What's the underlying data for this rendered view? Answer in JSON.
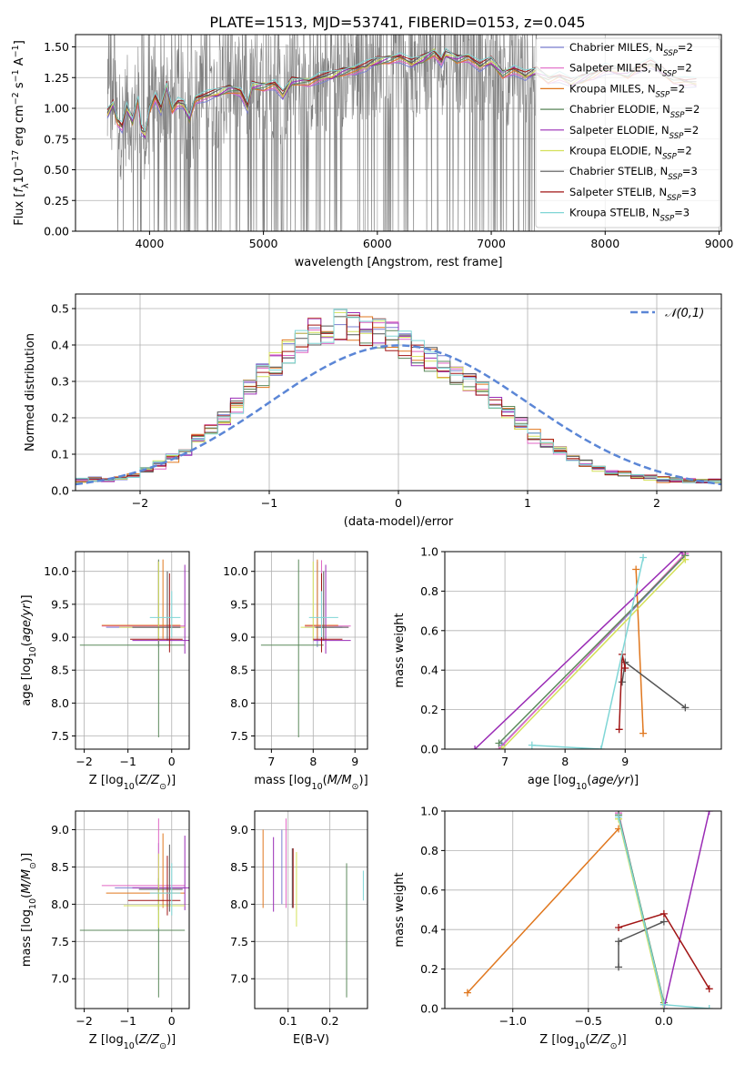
{
  "figure": {
    "title": "PLATE=1513, MJD=53741, FIBERID=0153, z=0.045"
  },
  "models": [
    {
      "name": "Chabrier MILES",
      "nssp": "2",
      "color": "#7b7fd1"
    },
    {
      "name": "Salpeter MILES",
      "nssp": "2",
      "color": "#e066c4"
    },
    {
      "name": "Kroupa MILES",
      "nssp": "2",
      "color": "#e0771e"
    },
    {
      "name": "Chabrier ELODIE",
      "nssp": "2",
      "color": "#5c8a5c"
    },
    {
      "name": "Salpeter ELODIE",
      "nssp": "2",
      "color": "#9a2bb5"
    },
    {
      "name": "Kroupa ELODIE",
      "nssp": "2",
      "color": "#d4e05a"
    },
    {
      "name": "Chabrier STELIB",
      "nssp": "3",
      "color": "#555555"
    },
    {
      "name": "Salpeter STELIB",
      "nssp": "3",
      "color": "#a11515"
    },
    {
      "name": "Kroupa STELIB",
      "nssp": "3",
      "color": "#7fd6d6"
    }
  ],
  "chart_data": [
    {
      "id": "spectrum",
      "type": "line",
      "xlabel": "wavelength [Angstrom, rest frame]",
      "ylabel": "Flux [f_λ 10^-17 erg cm^-2 s^-1 A^-1]",
      "xlim": [
        3350,
        9020
      ],
      "ylim": [
        0,
        1.6
      ],
      "xticks": [
        4000,
        5000,
        6000,
        7000,
        8000,
        9000
      ],
      "yticks": [
        0.0,
        0.25,
        0.5,
        0.75,
        1.0,
        1.25,
        1.5
      ],
      "data_color": "#808080",
      "data_range": [
        3630,
        7400
      ],
      "model_curve": {
        "x": [
          3630,
          3680,
          3720,
          3760,
          3800,
          3850,
          3900,
          3930,
          3960,
          4000,
          4050,
          4100,
          4150,
          4200,
          4250,
          4300,
          4350,
          4400,
          4500,
          4600,
          4700,
          4800,
          4860,
          4900,
          5000,
          5100,
          5170,
          5250,
          5400,
          5500,
          5600,
          5700,
          5800,
          5900,
          6000,
          6100,
          6200,
          6300,
          6400,
          6500,
          6563,
          6600,
          6700,
          6800,
          6900,
          7000,
          7100,
          7200,
          7300,
          7400,
          7500,
          7600,
          7700,
          7800,
          7900,
          8000,
          8100,
          8200,
          8300,
          8400,
          8500,
          8600,
          8700,
          8800
        ],
        "y": [
          0.95,
          1.03,
          0.9,
          0.85,
          1.0,
          0.9,
          1.08,
          0.82,
          0.78,
          1.0,
          1.1,
          0.98,
          1.18,
          1.0,
          1.05,
          1.02,
          0.92,
          1.08,
          1.1,
          1.12,
          1.16,
          1.14,
          1.0,
          1.18,
          1.18,
          1.2,
          1.1,
          1.22,
          1.22,
          1.25,
          1.26,
          1.3,
          1.32,
          1.34,
          1.38,
          1.4,
          1.42,
          1.36,
          1.4,
          1.46,
          1.38,
          1.44,
          1.4,
          1.42,
          1.34,
          1.38,
          1.28,
          1.32,
          1.26,
          1.3,
          1.24,
          1.26,
          1.2,
          1.24,
          1.28,
          1.32,
          1.3,
          1.28,
          1.34,
          1.36,
          1.3,
          1.24,
          1.22,
          1.2
        ]
      }
    },
    {
      "id": "residuals",
      "type": "line",
      "xlabel": "(data-model)/error",
      "ylabel": "Normed distribution",
      "xlim": [
        -2.5,
        2.5
      ],
      "ylim": [
        0,
        0.54
      ],
      "xticks": [
        -2,
        -1,
        0,
        1,
        2
      ],
      "yticks": [
        0.0,
        0.1,
        0.2,
        0.3,
        0.4,
        0.5
      ],
      "legend": "𝒩(0,1)",
      "gaussian_color": "#5b86d6",
      "hist_bins": [
        -2.5,
        2.5,
        50
      ],
      "hist_centre": [
        0.027,
        0.03,
        0.03,
        0.035,
        0.04,
        0.055,
        0.07,
        0.09,
        0.11,
        0.14,
        0.17,
        0.2,
        0.24,
        0.28,
        0.32,
        0.35,
        0.38,
        0.41,
        0.43,
        0.44,
        0.45,
        0.45,
        0.44,
        0.43,
        0.42,
        0.4,
        0.38,
        0.36,
        0.34,
        0.32,
        0.3,
        0.27,
        0.24,
        0.21,
        0.18,
        0.15,
        0.13,
        0.11,
        0.09,
        0.075,
        0.06,
        0.05,
        0.045,
        0.04,
        0.035,
        0.03,
        0.03,
        0.028,
        0.026,
        0.025
      ]
    },
    {
      "id": "z-age",
      "type": "scatter",
      "xlabel": "Z [log10(Z/Z⊙)]",
      "ylabel": "age  [log10(age/yr)]",
      "xlim": [
        -2.2,
        0.4
      ],
      "ylim": [
        7.3,
        10.3
      ],
      "xticks": [
        -2,
        -1,
        0
      ],
      "yticks": [
        7.5,
        8.0,
        8.5,
        9.0,
        9.5,
        10.0
      ],
      "points": [
        {
          "x": -0.3,
          "y": 9.15,
          "xerr": [
            1.2,
            0.5
          ],
          "yerr": [
            0.3,
            1.0
          ]
        },
        {
          "x": -0.3,
          "y": 9.17,
          "xerr": [
            1.3,
            0.6
          ],
          "yerr": [
            0.3,
            1.0
          ]
        },
        {
          "x": -0.2,
          "y": 9.18,
          "xerr": [
            1.4,
            0.4
          ],
          "yerr": [
            0.2,
            1.0
          ]
        },
        {
          "x": -0.3,
          "y": 8.88,
          "xerr": [
            1.8,
            0.6
          ],
          "yerr": [
            1.4,
            1.3
          ]
        },
        {
          "x": 0.3,
          "y": 8.95,
          "xerr": [
            1.2,
            0.1
          ],
          "yerr": [
            0.2,
            1.15
          ]
        },
        {
          "x": -0.3,
          "y": 9.15,
          "xerr": [
            0.9,
            0.6
          ],
          "yerr": [
            0.2,
            1.0
          ]
        },
        {
          "x": -0.1,
          "y": 9.15,
          "xerr": [
            0.8,
            0.3
          ],
          "yerr": [
            0.2,
            0.85
          ]
        },
        {
          "x": -0.05,
          "y": 8.97,
          "xerr": [
            0.9,
            0.3
          ],
          "yerr": [
            0.2,
            1.0
          ]
        },
        {
          "x": 0.0,
          "y": 9.3,
          "xerr": [
            0.5,
            0.2
          ],
          "yerr": [
            0.3,
            0.4
          ]
        }
      ]
    },
    {
      "id": "mass-age",
      "type": "scatter",
      "xlabel": "mass [log10(M/M⊙)]",
      "ylabel": "",
      "xlim": [
        6.6,
        9.3
      ],
      "ylim": [
        7.3,
        10.3
      ],
      "xticks": [
        7,
        8,
        9
      ],
      "yticks": [
        7.5,
        8.0,
        8.5,
        9.0,
        9.5,
        10.0
      ],
      "points": [
        {
          "x": 8.1,
          "y": 9.15,
          "xerr": [
            0.3,
            0.6
          ],
          "yerr": [
            0.3,
            1.0
          ]
        },
        {
          "x": 8.2,
          "y": 9.17,
          "xerr": [
            0.4,
            0.7
          ],
          "yerr": [
            0.3,
            1.0
          ]
        },
        {
          "x": 8.1,
          "y": 9.18,
          "xerr": [
            0.3,
            0.5
          ],
          "yerr": [
            0.2,
            1.0
          ]
        },
        {
          "x": 7.65,
          "y": 8.88,
          "xerr": [
            0.9,
            0.6
          ],
          "yerr": [
            1.4,
            1.3
          ]
        },
        {
          "x": 8.3,
          "y": 8.95,
          "xerr": [
            0.3,
            0.6
          ],
          "yerr": [
            0.2,
            1.15
          ]
        },
        {
          "x": 8.0,
          "y": 9.15,
          "xerr": [
            0.3,
            0.5
          ],
          "yerr": [
            0.2,
            1.0
          ]
        },
        {
          "x": 8.25,
          "y": 9.15,
          "xerr": [
            0.2,
            0.6
          ],
          "yerr": [
            0.2,
            0.85
          ]
        },
        {
          "x": 8.2,
          "y": 8.97,
          "xerr": [
            0.2,
            0.5
          ],
          "yerr": [
            0.2,
            1.0
          ]
        },
        {
          "x": 8.2,
          "y": 9.3,
          "xerr": [
            0.3,
            0.4
          ],
          "yerr": [
            0.3,
            0.4
          ]
        }
      ]
    },
    {
      "id": "age-weight",
      "type": "line",
      "xlabel": "age  [log10(age/yr)]",
      "ylabel": "mass weight",
      "xlim": [
        6.0,
        10.6
      ],
      "ylim": [
        0.0,
        1.0
      ],
      "xticks": [
        7,
        8,
        9
      ],
      "yticks": [
        0.0,
        0.2,
        0.4,
        0.6,
        0.8,
        1.0
      ],
      "series": [
        {
          "model": 0,
          "x": [
            6.95,
            10.0
          ],
          "y": [
            0.02,
            0.98
          ]
        },
        {
          "model": 1,
          "x": [
            6.9,
            10.0
          ],
          "y": [
            0.0,
            0.99
          ]
        },
        {
          "model": 2,
          "x": [
            9.3,
            9.18
          ],
          "y": [
            0.08,
            0.91
          ]
        },
        {
          "model": 3,
          "x": [
            6.9,
            10.0
          ],
          "y": [
            0.03,
            0.98
          ]
        },
        {
          "model": 4,
          "x": [
            6.5,
            9.95
          ],
          "y": [
            0.0,
            1.0
          ]
        },
        {
          "model": 5,
          "x": [
            6.95,
            10.0
          ],
          "y": [
            0.0,
            0.96
          ]
        },
        {
          "model": 6,
          "x": [
            10.0,
            9.0,
            8.95
          ],
          "y": [
            0.21,
            0.44,
            0.34
          ]
        },
        {
          "model": 7,
          "x": [
            8.9,
            8.95,
            9.0
          ],
          "y": [
            0.1,
            0.48,
            0.41
          ]
        },
        {
          "model": 8,
          "x": [
            7.45,
            8.6,
            9.3
          ],
          "y": [
            0.02,
            0.0,
            0.97
          ]
        }
      ]
    },
    {
      "id": "z-mass",
      "type": "scatter",
      "xlabel": "Z [log10(Z/Z⊙)]",
      "ylabel": "mass [log10(M/M⊙)]",
      "xlim": [
        -2.2,
        0.4
      ],
      "ylim": [
        6.6,
        9.25
      ],
      "xticks": [
        -2,
        -1,
        0
      ],
      "yticks": [
        7.0,
        7.5,
        8.0,
        8.5,
        9.0
      ],
      "points": [
        {
          "x": -0.3,
          "y": 8.22,
          "xerr": [
            1.0,
            0.6
          ],
          "yerr": [
            0.3,
            0.6
          ]
        },
        {
          "x": -0.3,
          "y": 8.25,
          "xerr": [
            1.3,
            0.6
          ],
          "yerr": [
            0.3,
            0.9
          ]
        },
        {
          "x": -0.2,
          "y": 8.15,
          "xerr": [
            1.3,
            0.5
          ],
          "yerr": [
            0.2,
            0.8
          ]
        },
        {
          "x": -0.3,
          "y": 7.65,
          "xerr": [
            1.8,
            0.6
          ],
          "yerr": [
            0.9,
            0.7
          ]
        },
        {
          "x": 0.3,
          "y": 8.22,
          "xerr": [
            1.2,
            0.1
          ],
          "yerr": [
            0.3,
            0.7
          ]
        },
        {
          "x": -0.3,
          "y": 7.98,
          "xerr": [
            0.8,
            0.6
          ],
          "yerr": [
            0.3,
            0.7
          ]
        },
        {
          "x": -0.05,
          "y": 8.2,
          "xerr": [
            0.7,
            0.3
          ],
          "yerr": [
            0.3,
            0.6
          ]
        },
        {
          "x": -0.1,
          "y": 8.05,
          "xerr": [
            0.9,
            0.3
          ],
          "yerr": [
            0.2,
            0.6
          ]
        },
        {
          "x": 0.0,
          "y": 8.15,
          "xerr": [
            0.5,
            0.2
          ],
          "yerr": [
            0.3,
            0.4
          ]
        }
      ]
    },
    {
      "id": "ebv-mass",
      "type": "scatter",
      "xlabel": "E(B-V)",
      "ylabel": "",
      "xlim": [
        0.02,
        0.29
      ],
      "ylim": [
        6.6,
        9.25
      ],
      "xticks": [
        0.1,
        0.2
      ],
      "yticks": [
        7.0,
        7.5,
        8.0,
        8.5,
        9.0
      ],
      "points": [
        {
          "x": 0.085,
          "y": 8.45,
          "yerr": [
            0.45,
            0.55
          ]
        },
        {
          "x": 0.095,
          "y": 8.55,
          "yerr": [
            0.6,
            0.6
          ]
        },
        {
          "x": 0.04,
          "y": 8.45,
          "yerr": [
            0.5,
            0.55
          ]
        },
        {
          "x": 0.24,
          "y": 7.65,
          "yerr": [
            0.9,
            0.9
          ]
        },
        {
          "x": 0.065,
          "y": 8.4,
          "yerr": [
            0.5,
            0.5
          ]
        },
        {
          "x": 0.12,
          "y": 8.2,
          "yerr": [
            0.5,
            0.5
          ]
        },
        {
          "x": 0.11,
          "y": 8.35,
          "yerr": [
            0.4,
            0.4
          ]
        },
        {
          "x": 0.112,
          "y": 8.35,
          "yerr": [
            0.4,
            0.4
          ]
        },
        {
          "x": 0.28,
          "y": 8.25,
          "yerr": [
            0.2,
            0.2
          ]
        }
      ]
    },
    {
      "id": "z-weight",
      "type": "line",
      "xlabel": "Z [log10(Z/Z⊙)]",
      "ylabel": "mass weight",
      "xlim": [
        -1.45,
        0.38
      ],
      "ylim": [
        0.0,
        1.0
      ],
      "xticks": [
        -1.0,
        -0.5,
        0.0
      ],
      "yticks": [
        0.0,
        0.2,
        0.4,
        0.6,
        0.8,
        1.0
      ],
      "series": [
        {
          "model": 0,
          "x": [
            -0.3,
            0.0
          ],
          "y": [
            0.98,
            0.02
          ]
        },
        {
          "model": 1,
          "x": [
            -0.3,
            0.0
          ],
          "y": [
            0.99,
            0.0
          ]
        },
        {
          "model": 2,
          "x": [
            -1.3,
            -0.3
          ],
          "y": [
            0.08,
            0.91
          ]
        },
        {
          "model": 3,
          "x": [
            -0.3,
            0.0
          ],
          "y": [
            0.98,
            0.03
          ]
        },
        {
          "model": 4,
          "x": [
            0.0,
            0.3
          ],
          "y": [
            0.0,
            1.0
          ]
        },
        {
          "model": 5,
          "x": [
            -0.3,
            0.0
          ],
          "y": [
            0.96,
            0.0
          ]
        },
        {
          "model": 6,
          "x": [
            -0.3,
            -0.3,
            0.0
          ],
          "y": [
            0.21,
            0.34,
            0.44
          ]
        },
        {
          "model": 7,
          "x": [
            -0.3,
            0.0,
            0.3
          ],
          "y": [
            0.41,
            0.48,
            0.1
          ]
        },
        {
          "model": 8,
          "x": [
            -0.3,
            0.0,
            0.3
          ],
          "y": [
            0.97,
            0.02,
            0.0
          ]
        }
      ]
    }
  ]
}
